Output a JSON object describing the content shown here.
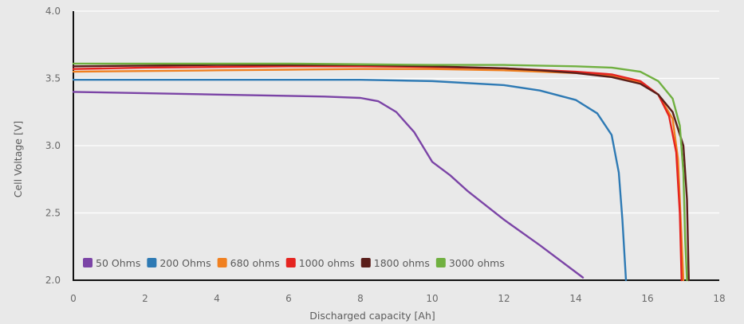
{
  "chart_data": {
    "type": "line",
    "xlabel": "Discharged capacity [Ah]",
    "ylabel": "Cell Voltage [V]",
    "xlim": [
      0,
      18
    ],
    "ylim": [
      2.0,
      4.0
    ],
    "xticks": [
      "0",
      "2",
      "4",
      "6",
      "8",
      "10",
      "12",
      "14",
      "16",
      "18"
    ],
    "yticks": [
      "2.0",
      "2.5",
      "3.0",
      "3.5",
      "4.0"
    ],
    "grid": true,
    "legend_position": "bottom-left",
    "series": [
      {
        "name": "50 Ohms",
        "color": "#7b44a6",
        "points": [
          [
            0,
            3.4
          ],
          [
            2,
            3.39
          ],
          [
            4,
            3.38
          ],
          [
            6,
            3.37
          ],
          [
            7,
            3.365
          ],
          [
            8,
            3.355
          ],
          [
            8.5,
            3.33
          ],
          [
            9,
            3.25
          ],
          [
            9.5,
            3.1
          ],
          [
            10,
            2.88
          ],
          [
            10.5,
            2.78
          ],
          [
            11,
            2.66
          ],
          [
            12,
            2.45
          ],
          [
            13,
            2.26
          ],
          [
            14,
            2.06
          ],
          [
            14.2,
            2.02
          ]
        ]
      },
      {
        "name": "200 Ohms",
        "color": "#2e7ab4",
        "points": [
          [
            0,
            3.49
          ],
          [
            2,
            3.49
          ],
          [
            4,
            3.49
          ],
          [
            6,
            3.49
          ],
          [
            8,
            3.49
          ],
          [
            10,
            3.48
          ],
          [
            12,
            3.45
          ],
          [
            13,
            3.41
          ],
          [
            14,
            3.34
          ],
          [
            14.6,
            3.24
          ],
          [
            15,
            3.08
          ],
          [
            15.2,
            2.8
          ],
          [
            15.3,
            2.45
          ],
          [
            15.4,
            2.0
          ]
        ]
      },
      {
        "name": "680 ohms",
        "color": "#f08020",
        "points": [
          [
            0,
            3.55
          ],
          [
            2,
            3.555
          ],
          [
            4,
            3.56
          ],
          [
            6,
            3.565
          ],
          [
            8,
            3.57
          ],
          [
            10,
            3.57
          ],
          [
            12,
            3.56
          ],
          [
            14,
            3.54
          ],
          [
            15,
            3.52
          ],
          [
            15.8,
            3.47
          ],
          [
            16.3,
            3.38
          ],
          [
            16.7,
            3.2
          ],
          [
            16.85,
            2.9
          ],
          [
            16.95,
            2.3
          ],
          [
            17.0,
            2.0
          ]
        ]
      },
      {
        "name": "1000 ohms",
        "color": "#e52420",
        "points": [
          [
            0,
            3.57
          ],
          [
            2,
            3.58
          ],
          [
            4,
            3.585
          ],
          [
            6,
            3.59
          ],
          [
            8,
            3.59
          ],
          [
            10,
            3.585
          ],
          [
            12,
            3.575
          ],
          [
            14,
            3.55
          ],
          [
            15,
            3.53
          ],
          [
            15.8,
            3.48
          ],
          [
            16.3,
            3.38
          ],
          [
            16.6,
            3.22
          ],
          [
            16.8,
            2.95
          ],
          [
            16.9,
            2.5
          ],
          [
            16.95,
            2.0
          ]
        ]
      },
      {
        "name": "1800 ohms",
        "color": "#5a1e1a",
        "points": [
          [
            0,
            3.59
          ],
          [
            2,
            3.595
          ],
          [
            4,
            3.6
          ],
          [
            6,
            3.6
          ],
          [
            8,
            3.6
          ],
          [
            10,
            3.59
          ],
          [
            12,
            3.575
          ],
          [
            13,
            3.56
          ],
          [
            14,
            3.54
          ],
          [
            15,
            3.51
          ],
          [
            15.8,
            3.46
          ],
          [
            16.3,
            3.38
          ],
          [
            16.7,
            3.25
          ],
          [
            17.0,
            3.0
          ],
          [
            17.1,
            2.6
          ],
          [
            17.15,
            2.0
          ]
        ]
      },
      {
        "name": "3000 ohms",
        "color": "#70b040",
        "points": [
          [
            0,
            3.61
          ],
          [
            2,
            3.61
          ],
          [
            4,
            3.61
          ],
          [
            6,
            3.61
          ],
          [
            8,
            3.605
          ],
          [
            10,
            3.6
          ],
          [
            12,
            3.6
          ],
          [
            14,
            3.59
          ],
          [
            15,
            3.58
          ],
          [
            15.8,
            3.55
          ],
          [
            16.3,
            3.48
          ],
          [
            16.7,
            3.35
          ],
          [
            16.9,
            3.15
          ],
          [
            17.0,
            2.8
          ],
          [
            17.05,
            2.3
          ],
          [
            17.1,
            2.0
          ]
        ]
      }
    ]
  }
}
